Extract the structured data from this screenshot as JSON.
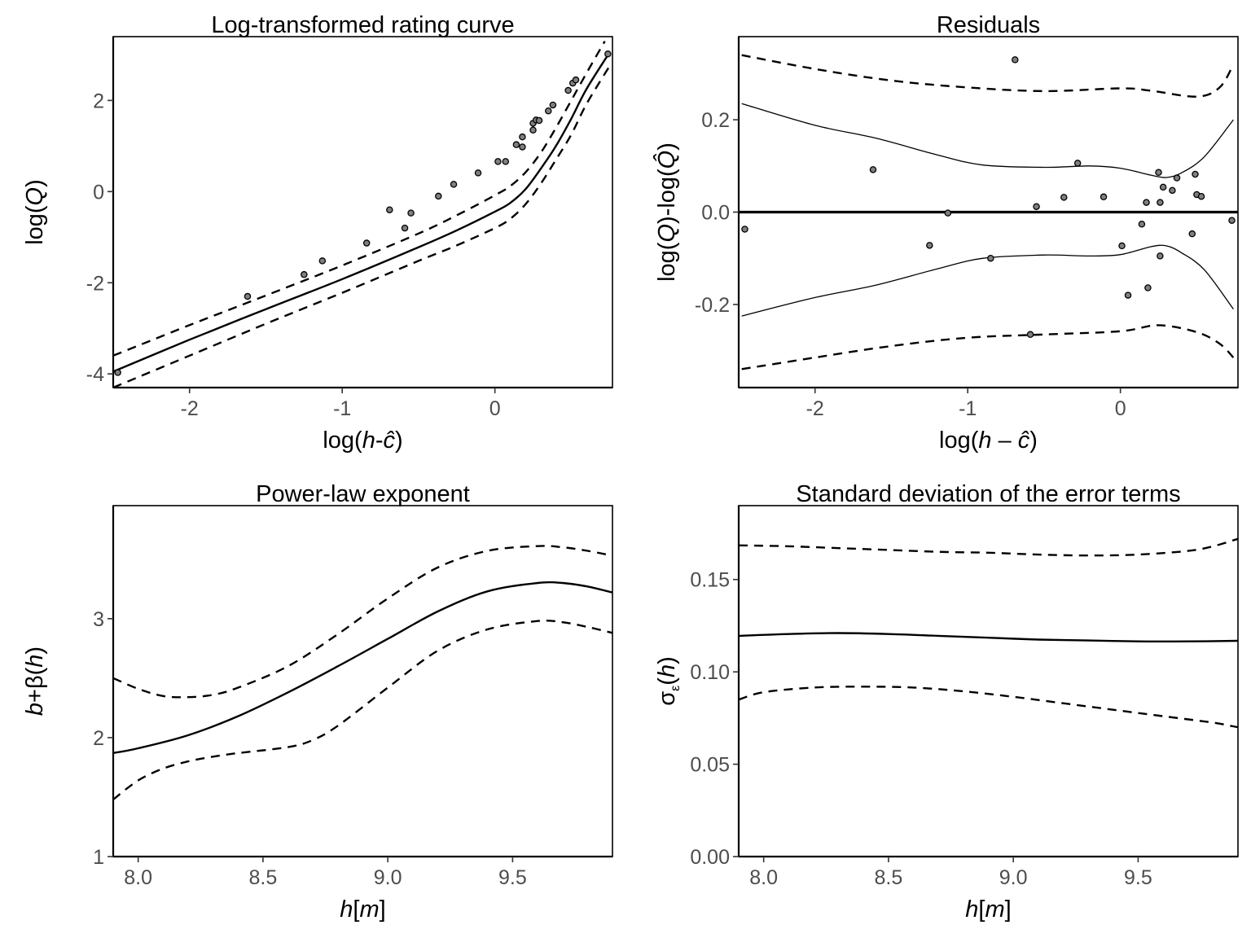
{
  "chart_data": [
    {
      "type": "line",
      "title": "Log-transformed rating curve",
      "xlabel_parts": [
        "log(",
        "h",
        "-",
        "ĉ",
        ")"
      ],
      "ylabel_parts": [
        "log(",
        "Q",
        ")"
      ],
      "xlim": [
        -2.5,
        0.77
      ],
      "ylim": [
        -4.3,
        3.4
      ],
      "xticks": [
        -2,
        -1,
        0
      ],
      "yticks": [
        -4,
        -2,
        0,
        2
      ],
      "xtick_labels": [
        "-2",
        "-1",
        "0"
      ],
      "ytick_labels": [
        "-4",
        "-2",
        "0",
        "2"
      ],
      "grid": false,
      "series": [
        {
          "role": "fit",
          "style": "solid",
          "x": [
            -2.5,
            -2.0,
            -1.5,
            -1.0,
            -0.5,
            -0.25,
            0.0,
            0.1,
            0.2,
            0.3,
            0.4,
            0.5,
            0.6,
            0.75
          ],
          "y": [
            -3.95,
            -3.25,
            -2.58,
            -1.92,
            -1.22,
            -0.85,
            -0.44,
            -0.25,
            0.05,
            0.5,
            1.0,
            1.6,
            2.25,
            3.05
          ]
        },
        {
          "role": "upper",
          "style": "dashed",
          "x": [
            -2.5,
            -2.0,
            -1.5,
            -1.0,
            -0.5,
            -0.25,
            0.0,
            0.1,
            0.2,
            0.3,
            0.4,
            0.5,
            0.6,
            0.72
          ],
          "y": [
            -3.6,
            -2.93,
            -2.28,
            -1.62,
            -0.92,
            -0.52,
            -0.08,
            0.12,
            0.42,
            0.85,
            1.4,
            2.0,
            2.6,
            3.3
          ]
        },
        {
          "role": "lower",
          "style": "dashed",
          "x": [
            -2.5,
            -2.0,
            -1.5,
            -1.0,
            -0.5,
            -0.25,
            0.0,
            0.1,
            0.2,
            0.3,
            0.4,
            0.5,
            0.6,
            0.75
          ],
          "y": [
            -4.3,
            -3.6,
            -2.9,
            -2.22,
            -1.52,
            -1.18,
            -0.8,
            -0.6,
            -0.28,
            0.17,
            0.7,
            1.25,
            1.92,
            2.75
          ]
        },
        {
          "role": "observations",
          "style": "points",
          "x": [
            -2.47,
            -1.62,
            -1.25,
            -1.13,
            -0.84,
            -0.69,
            -0.59,
            -0.55,
            -0.37,
            -0.27,
            -0.11,
            0.02,
            0.07,
            0.14,
            0.18,
            0.18,
            0.25,
            0.25,
            0.27,
            0.29,
            0.35,
            0.38,
            0.48,
            0.51,
            0.53,
            0.74
          ],
          "y": [
            -3.97,
            -2.3,
            -1.82,
            -1.52,
            -1.13,
            -0.4,
            -0.8,
            -0.47,
            -0.1,
            0.16,
            0.41,
            0.66,
            0.66,
            1.03,
            0.98,
            1.2,
            1.35,
            1.5,
            1.57,
            1.56,
            1.77,
            1.9,
            2.22,
            2.38,
            2.45,
            3.02
          ]
        }
      ]
    },
    {
      "type": "line",
      "title": "Residuals",
      "xlabel_parts": [
        "log(",
        "h",
        " – ",
        "ĉ",
        ")"
      ],
      "ylabel_parts": [
        "log(",
        "Q",
        ")-log(",
        "Q̂",
        ")"
      ],
      "xlim": [
        -2.5,
        0.77
      ],
      "ylim": [
        -0.38,
        0.38
      ],
      "xticks": [
        -2,
        -1,
        0
      ],
      "yticks": [
        -0.2,
        0.0,
        0.2
      ],
      "xtick_labels": [
        "-2",
        "-1",
        "0"
      ],
      "ytick_labels": [
        "-0.2",
        "0.0",
        "0.2"
      ],
      "grid": false,
      "series": [
        {
          "role": "zero",
          "style": "thick",
          "x": [
            -2.5,
            0.77
          ],
          "y": [
            0.0,
            0.0
          ]
        },
        {
          "role": "upper-dashed",
          "style": "dashed",
          "x": [
            -2.48,
            -2.0,
            -1.5,
            -1.0,
            -0.5,
            0.0,
            0.2,
            0.5,
            0.65,
            0.74
          ],
          "y": [
            0.34,
            0.31,
            0.285,
            0.27,
            0.262,
            0.268,
            0.263,
            0.25,
            0.27,
            0.32
          ]
        },
        {
          "role": "lower-dashed",
          "style": "dashed",
          "x": [
            -2.48,
            -2.0,
            -1.5,
            -1.0,
            -0.5,
            0.0,
            0.25,
            0.5,
            0.65,
            0.74
          ],
          "y": [
            -0.34,
            -0.315,
            -0.29,
            -0.272,
            -0.265,
            -0.258,
            -0.245,
            -0.26,
            -0.285,
            -0.315
          ]
        },
        {
          "role": "upper-solid",
          "style": "thin",
          "x": [
            -2.48,
            -2.0,
            -1.6,
            -1.2,
            -0.9,
            -0.5,
            -0.2,
            0.0,
            0.2,
            0.3,
            0.4,
            0.55,
            0.74
          ],
          "y": [
            0.235,
            0.188,
            0.16,
            0.124,
            0.102,
            0.097,
            0.1,
            0.095,
            0.08,
            0.075,
            0.085,
            0.12,
            0.2
          ]
        },
        {
          "role": "lower-solid",
          "style": "thin",
          "x": [
            -2.48,
            -2.0,
            -1.6,
            -1.2,
            -0.9,
            -0.5,
            -0.2,
            0.0,
            0.2,
            0.3,
            0.4,
            0.55,
            0.74
          ],
          "y": [
            -0.225,
            -0.185,
            -0.158,
            -0.123,
            -0.1,
            -0.093,
            -0.095,
            -0.092,
            -0.075,
            -0.073,
            -0.088,
            -0.125,
            -0.21
          ]
        },
        {
          "role": "residual-points",
          "style": "points",
          "x": [
            -2.46,
            -1.62,
            -1.25,
            -1.13,
            -0.85,
            -0.69,
            -0.59,
            -0.55,
            -0.37,
            -0.28,
            -0.11,
            0.01,
            0.05,
            0.14,
            0.17,
            0.18,
            0.25,
            0.26,
            0.26,
            0.28,
            0.34,
            0.37,
            0.47,
            0.49,
            0.5,
            0.53,
            0.73
          ],
          "y": [
            -0.037,
            0.092,
            -0.072,
            -0.002,
            -0.1,
            0.33,
            -0.265,
            0.012,
            0.032,
            0.106,
            0.033,
            -0.073,
            -0.18,
            -0.026,
            0.021,
            -0.164,
            0.086,
            0.021,
            -0.095,
            0.054,
            0.047,
            0.074,
            -0.047,
            0.082,
            0.038,
            0.034,
            -0.018
          ]
        }
      ]
    },
    {
      "type": "line",
      "title": "Power-law exponent",
      "xlabel_parts": [
        "h",
        "[",
        "m",
        "]"
      ],
      "ylabel_parts": [
        "b",
        "+β(",
        "h",
        ")"
      ],
      "xlim": [
        7.9,
        9.9
      ],
      "ylim": [
        1.0,
        3.95
      ],
      "xticks": [
        8.0,
        8.5,
        9.0,
        9.5
      ],
      "yticks": [
        1,
        2,
        3
      ],
      "xtick_labels": [
        "8.0",
        "8.5",
        "9.0",
        "9.5"
      ],
      "ytick_labels": [
        "1",
        "2",
        "3"
      ],
      "grid": false,
      "series": [
        {
          "role": "fit",
          "style": "solid",
          "x": [
            7.9,
            8.0,
            8.2,
            8.4,
            8.6,
            8.8,
            9.0,
            9.2,
            9.4,
            9.6,
            9.7,
            9.8,
            9.9
          ],
          "y": [
            1.87,
            1.91,
            2.02,
            2.18,
            2.38,
            2.6,
            2.83,
            3.06,
            3.23,
            3.3,
            3.3,
            3.27,
            3.22
          ]
        },
        {
          "role": "upper",
          "style": "dashed",
          "x": [
            7.9,
            8.0,
            8.1,
            8.2,
            8.3,
            8.4,
            8.6,
            8.8,
            9.0,
            9.2,
            9.4,
            9.6,
            9.7,
            9.8,
            9.9
          ],
          "y": [
            2.5,
            2.41,
            2.35,
            2.34,
            2.36,
            2.42,
            2.6,
            2.87,
            3.17,
            3.43,
            3.57,
            3.61,
            3.6,
            3.57,
            3.53
          ]
        },
        {
          "role": "lower",
          "style": "dashed",
          "x": [
            7.9,
            8.0,
            8.1,
            8.2,
            8.3,
            8.4,
            8.6,
            8.7,
            8.8,
            9.0,
            9.2,
            9.4,
            9.6,
            9.7,
            9.8,
            9.9
          ],
          "y": [
            1.48,
            1.64,
            1.74,
            1.8,
            1.84,
            1.87,
            1.92,
            1.98,
            2.1,
            2.42,
            2.73,
            2.91,
            2.98,
            2.97,
            2.93,
            2.88
          ]
        }
      ]
    },
    {
      "type": "line",
      "title": "Standard deviation of the error terms",
      "xlabel_parts": [
        "h",
        "[",
        "m",
        "]"
      ],
      "ylabel_parts": [
        "σ",
        "ε",
        "(",
        "h",
        ")"
      ],
      "xlim": [
        7.9,
        9.9
      ],
      "ylim": [
        0.0,
        0.19
      ],
      "xticks": [
        8.0,
        8.5,
        9.0,
        9.5
      ],
      "yticks": [
        0.0,
        0.05,
        0.1,
        0.15
      ],
      "xtick_labels": [
        "8.0",
        "8.5",
        "9.0",
        "9.5"
      ],
      "ytick_labels": [
        "0.00",
        "0.05",
        "0.10",
        "0.15"
      ],
      "grid": false,
      "series": [
        {
          "role": "fit",
          "style": "solid",
          "x": [
            7.9,
            8.1,
            8.3,
            8.5,
            8.7,
            8.9,
            9.1,
            9.3,
            9.5,
            9.7,
            9.9
          ],
          "y": [
            0.1195,
            0.1205,
            0.121,
            0.1205,
            0.1195,
            0.1185,
            0.1175,
            0.117,
            0.1165,
            0.1165,
            0.1168
          ]
        },
        {
          "role": "upper",
          "style": "dashed",
          "x": [
            7.9,
            8.1,
            8.3,
            8.5,
            8.7,
            8.9,
            9.1,
            9.3,
            9.5,
            9.7,
            9.8,
            9.9
          ],
          "y": [
            0.1685,
            0.168,
            0.167,
            0.166,
            0.165,
            0.1645,
            0.1635,
            0.163,
            0.1635,
            0.1655,
            0.168,
            0.172
          ]
        },
        {
          "role": "lower",
          "style": "dashed",
          "x": [
            7.9,
            8.0,
            8.2,
            8.4,
            8.6,
            8.8,
            9.0,
            9.2,
            9.4,
            9.6,
            9.8,
            9.9
          ],
          "y": [
            0.085,
            0.089,
            0.0915,
            0.092,
            0.0915,
            0.0895,
            0.0865,
            0.083,
            0.0795,
            0.076,
            0.0725,
            0.07
          ]
        }
      ]
    }
  ]
}
